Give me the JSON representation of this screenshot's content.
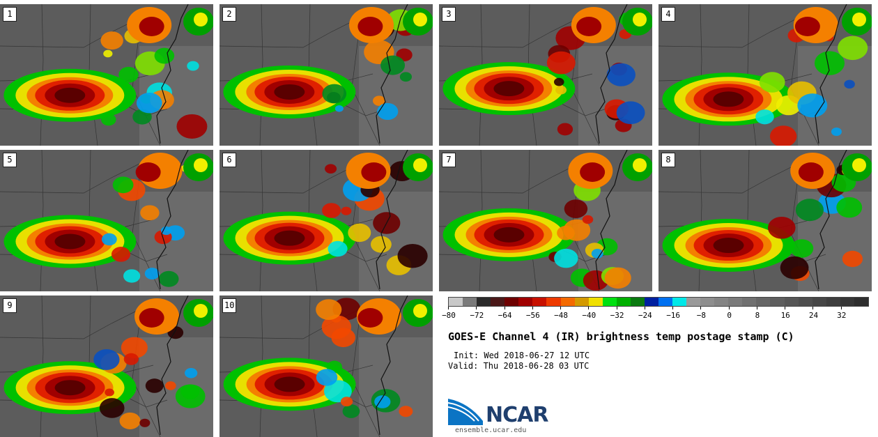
{
  "stamps": [
    {
      "label": "1"
    },
    {
      "label": "2"
    },
    {
      "label": "3"
    },
    {
      "label": "4"
    },
    {
      "label": "5"
    },
    {
      "label": "6"
    },
    {
      "label": "7"
    },
    {
      "label": "8"
    },
    {
      "label": "9"
    },
    {
      "label": "10"
    }
  ],
  "colorbar": {
    "colors": [
      "#c8c8c8",
      "#7a7a7a",
      "#2a2a2a",
      "#4a1818",
      "#6e0000",
      "#a00000",
      "#c81000",
      "#ee3a00",
      "#f46a00",
      "#d49a00",
      "#f0e000",
      "#00e010",
      "#00b000",
      "#0a7a10",
      "#0020a0",
      "#0070f0",
      "#00e8e8",
      "#9a9a9a",
      "#8e8e8e",
      "#848484",
      "#7a7a7a",
      "#707070",
      "#666666",
      "#5e5e5e",
      "#565656",
      "#4e4e4e",
      "#464646",
      "#3e3e3e",
      "#363636",
      "#2e2e2e"
    ],
    "ticks": [
      "−80",
      "−72",
      "−64",
      "−56",
      "−48",
      "−40",
      "−32",
      "−24",
      "−16",
      "−8",
      "0",
      "8",
      "16",
      "24",
      "32"
    ]
  },
  "title": "GOES-E Channel 4 (IR) brightness temp postage stamp (C)",
  "init": "Init: Wed 2018-06-27 12 UTC",
  "valid": "Valid: Thu 2018-06-28 03 UTC",
  "logo": {
    "text": "NCAR",
    "url": "ensemble.ucar.edu"
  }
}
